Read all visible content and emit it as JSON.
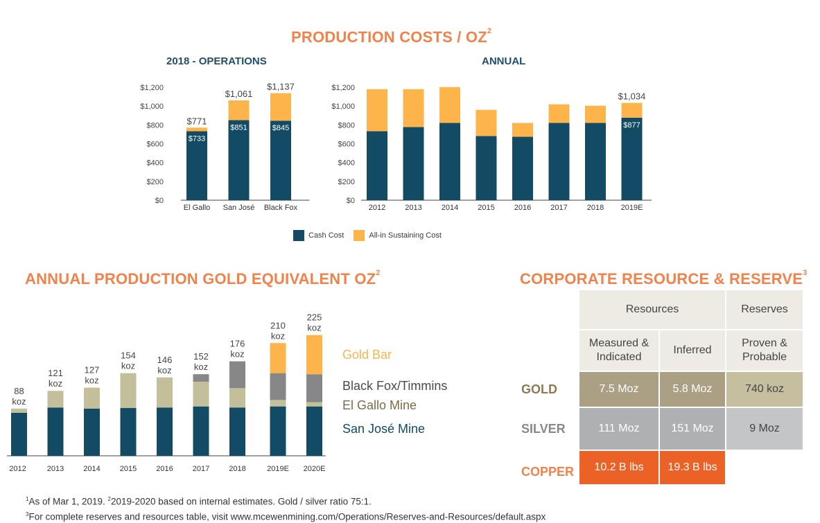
{
  "headings": {
    "production_costs_title": "PRODUCTION COSTS / OZ",
    "production_costs_sup": "2",
    "annual_production_title": "ANNUAL PRODUCTION GOLD EQUIVALENT OZ",
    "annual_production_sup": "2",
    "resource_reserve_title": "CORPORATE RESOURCE & RESERVE",
    "resource_reserve_sup": "3"
  },
  "colors": {
    "cash_cost": "#124b63",
    "aisc": "#fdb44b",
    "san_jose": "#124b63",
    "el_gallo": "#c4bf9b",
    "black_fox": "#87878a",
    "gold_bar": "#fdb44b",
    "title_orange": "#f0824a"
  },
  "chart_data": [
    {
      "type": "bar",
      "stacked": true,
      "title": "2018 - OPERATIONS",
      "categories": [
        "El Gallo",
        "San José",
        "Black Fox"
      ],
      "series": [
        {
          "name": "Cash Cost",
          "values": [
            733,
            851,
            845
          ]
        },
        {
          "name": "All-in Sustaining Cost",
          "values": [
            38,
            210,
            292
          ]
        }
      ],
      "inner_labels": [
        "$733",
        "$851",
        "$845"
      ],
      "total_labels": [
        "$771",
        "$1,061",
        "$1,137"
      ],
      "ylim": [
        0,
        1200
      ],
      "yticks": [
        "$0",
        "$200",
        "$400",
        "$600",
        "$800",
        "$1,000",
        "$1,200"
      ],
      "xlabel": "",
      "ylabel": "",
      "grid": false
    },
    {
      "type": "bar",
      "stacked": true,
      "title": "ANNUAL",
      "categories": [
        "2012",
        "2013",
        "2014",
        "2015",
        "2016",
        "2017",
        "2018",
        "2019E"
      ],
      "series": [
        {
          "name": "Cash Cost",
          "values": [
            733,
            777,
            821,
            682,
            674,
            821,
            821,
            877
          ]
        },
        {
          "name": "All-in Sustaining Cost",
          "values": [
            447,
            403,
            381,
            278,
            147,
            198,
            183,
            157
          ]
        }
      ],
      "inner_labels": [
        "",
        "",
        "",
        "",
        "",
        "",
        "",
        "$877"
      ],
      "total_labels": [
        "",
        "",
        "",
        "",
        "",
        "",
        "",
        "$1,034"
      ],
      "ylim": [
        0,
        1200
      ],
      "yticks": [
        "$0",
        "$200",
        "$400",
        "$600",
        "$800",
        "$1,000",
        "$1,200"
      ],
      "legend": [
        "Cash Cost",
        "All-in Sustaining Cost"
      ],
      "legend_position": "bottom",
      "xlabel": "",
      "ylabel": "",
      "grid": false
    },
    {
      "type": "bar",
      "stacked": true,
      "title": "ANNUAL PRODUCTION GOLD EQUIVALENT OZ",
      "categories": [
        "2012",
        "2013",
        "2014",
        "2015",
        "2016",
        "2017",
        "2018",
        "2019E",
        "2020E"
      ],
      "series": [
        {
          "name": "San José Mine",
          "values": [
            80,
            90,
            88,
            89,
            90,
            92,
            90,
            92,
            92
          ]
        },
        {
          "name": "El Gallo Mine",
          "values": [
            8,
            31,
            39,
            65,
            56,
            46,
            36,
            12,
            8
          ]
        },
        {
          "name": "Black Fox/Timmins",
          "values": [
            0,
            0,
            0,
            0,
            0,
            14,
            50,
            50,
            52
          ]
        },
        {
          "name": "Gold Bar",
          "values": [
            0,
            0,
            0,
            0,
            0,
            0,
            0,
            56,
            73
          ]
        }
      ],
      "total_labels": [
        "88",
        "121",
        "127",
        "154",
        "146",
        "152",
        "176",
        "210",
        "225"
      ],
      "unit_label": "koz",
      "ylim": [
        0,
        240
      ],
      "legend": [
        "Gold Bar",
        "Black Fox/Timmins",
        "El Gallo Mine",
        "San José Mine"
      ],
      "legend_position": "right",
      "xlabel": "",
      "ylabel": "",
      "grid": false
    }
  ],
  "resource_table": {
    "header_groups": [
      "Resources",
      "Reserves"
    ],
    "sub_headers": [
      "Measured & Indicated",
      "Inferred",
      "Proven & Probable"
    ],
    "rows": [
      {
        "label": "GOLD",
        "values": [
          "7.5 Moz",
          "5.8 Moz",
          "740 koz"
        ]
      },
      {
        "label": "SILVER",
        "values": [
          "111 Moz",
          "151 Moz",
          "9 Moz"
        ]
      },
      {
        "label": "COPPER",
        "values": [
          "10.2 B lbs",
          "19.3 B lbs",
          ""
        ]
      }
    ]
  },
  "footnotes": {
    "line1_sup1": "1",
    "line1_a": "As of Mar 1, 2019. ",
    "line1_sup2": "2",
    "line1_b": "2019-2020 based on internal estimates. Gold / silver ratio 75:1.",
    "line2_sup": "3",
    "line2": "For complete reserves and resources table, visit www.mcewenmining.com/Operations/Reserves-and-Resources/default.aspx"
  }
}
